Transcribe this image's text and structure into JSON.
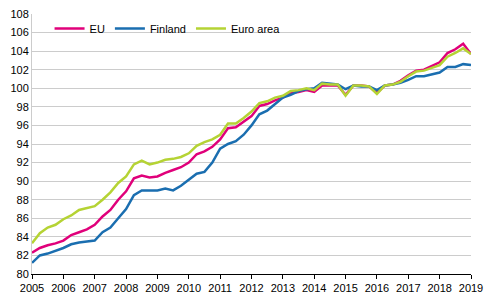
{
  "chart_data": {
    "type": "line",
    "x": [
      2005,
      2005.25,
      2005.5,
      2005.75,
      2006,
      2006.25,
      2006.5,
      2006.75,
      2007,
      2007.25,
      2007.5,
      2007.75,
      2008,
      2008.25,
      2008.5,
      2008.75,
      2009,
      2009.25,
      2009.5,
      2009.75,
      2010,
      2010.25,
      2010.5,
      2010.75,
      2011,
      2011.25,
      2011.5,
      2011.75,
      2012,
      2012.25,
      2012.5,
      2012.75,
      2013,
      2013.25,
      2013.5,
      2013.75,
      2014,
      2014.25,
      2014.5,
      2014.75,
      2015,
      2015.25,
      2015.5,
      2015.75,
      2016,
      2016.25,
      2016.5,
      2016.75,
      2017,
      2017.25,
      2017.5,
      2017.75,
      2018,
      2018.25,
      2018.5,
      2018.75,
      2019
    ],
    "series": [
      {
        "name": "EU",
        "color": "#e0007a",
        "values": [
          82.3,
          82.8,
          83.1,
          83.3,
          83.6,
          84.2,
          84.5,
          84.8,
          85.3,
          86.2,
          86.9,
          88.0,
          88.9,
          90.3,
          90.6,
          90.4,
          90.5,
          90.9,
          91.2,
          91.5,
          92.0,
          92.9,
          93.2,
          93.7,
          94.5,
          95.7,
          95.8,
          96.4,
          97.0,
          98.1,
          98.3,
          98.7,
          99.0,
          99.5,
          99.6,
          99.8,
          99.6,
          100.3,
          100.3,
          100.3,
          99.3,
          100.3,
          100.3,
          100.2,
          99.5,
          100.3,
          100.4,
          100.8,
          101.4,
          101.9,
          102.0,
          102.4,
          102.8,
          103.8,
          104.2,
          104.8,
          103.7
        ]
      },
      {
        "name": "Finland",
        "color": "#1a6eb0",
        "values": [
          81.2,
          82.0,
          82.2,
          82.5,
          82.8,
          83.2,
          83.4,
          83.5,
          83.6,
          84.5,
          85.0,
          86.0,
          87.0,
          88.5,
          89.0,
          89.0,
          89.0,
          89.2,
          89.0,
          89.5,
          90.2,
          90.8,
          91.0,
          92.0,
          93.5,
          94.0,
          94.3,
          95.0,
          96.0,
          97.2,
          97.6,
          98.3,
          99.0,
          99.3,
          99.7,
          99.9,
          100.0,
          100.6,
          100.5,
          100.4,
          99.9,
          100.3,
          100.2,
          100.2,
          99.8,
          100.3,
          100.4,
          100.6,
          100.9,
          101.3,
          101.3,
          101.5,
          101.7,
          102.3,
          102.3,
          102.6,
          102.5
        ]
      },
      {
        "name": "Euro area",
        "color": "#b5d334",
        "values": [
          83.3,
          84.4,
          85.0,
          85.3,
          85.9,
          86.3,
          86.9,
          87.1,
          87.3,
          88.0,
          88.8,
          89.8,
          90.5,
          91.8,
          92.2,
          91.8,
          92.0,
          92.3,
          92.4,
          92.6,
          93.0,
          93.8,
          94.2,
          94.5,
          95.0,
          96.2,
          96.2,
          96.8,
          97.5,
          98.4,
          98.6,
          99.0,
          99.2,
          99.7,
          99.8,
          100.0,
          99.8,
          100.5,
          100.4,
          100.4,
          99.2,
          100.3,
          100.3,
          100.2,
          99.4,
          100.3,
          100.4,
          100.7,
          101.3,
          101.8,
          101.9,
          102.2,
          102.5,
          103.4,
          103.8,
          104.3,
          103.7
        ]
      }
    ],
    "xlim": [
      2005,
      2019
    ],
    "xticks": [
      2005,
      2006,
      2007,
      2008,
      2009,
      2010,
      2011,
      2012,
      2013,
      2014,
      2015,
      2016,
      2017,
      2018,
      2019
    ],
    "ylim": [
      80,
      108
    ],
    "yticks": [
      80,
      82,
      84,
      86,
      88,
      90,
      92,
      94,
      96,
      98,
      100,
      102,
      104,
      106,
      108
    ],
    "grid": true,
    "legend": "top left"
  }
}
